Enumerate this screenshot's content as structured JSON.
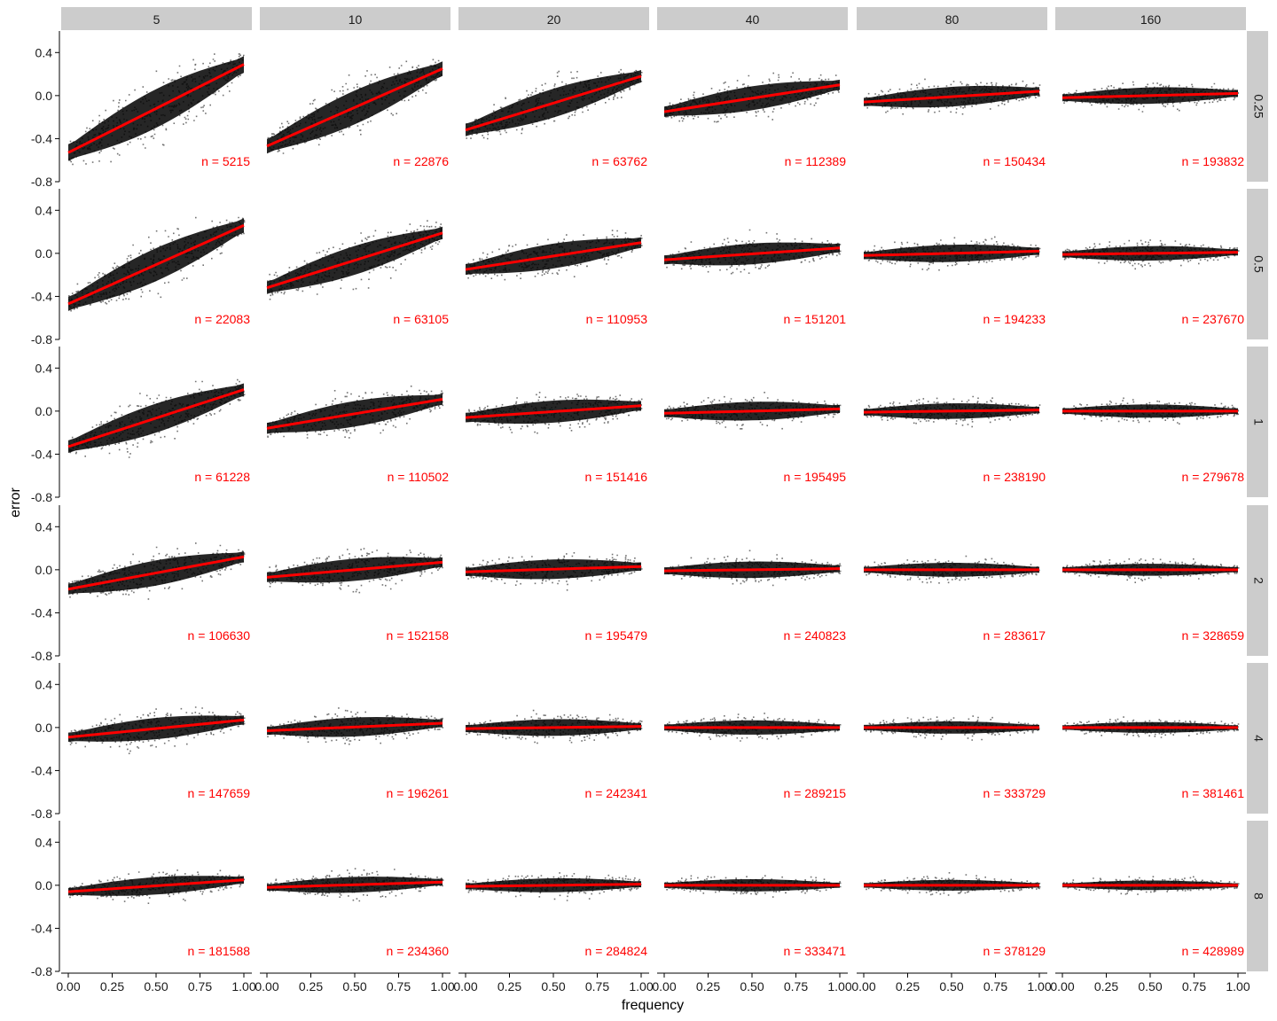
{
  "chart_data": {
    "type": "scatter",
    "layout": "facet-grid",
    "title": "",
    "xlabel": "frequency",
    "ylabel": "error",
    "xlim": [
      0,
      1
    ],
    "ylim": [
      -0.8,
      0.6
    ],
    "x_ticks": [
      0,
      0.25,
      0.5,
      0.75,
      1
    ],
    "x_tick_labels": [
      "0.00",
      "0.25",
      "0.50",
      "0.75",
      "1.00"
    ],
    "y_ticks": [
      -0.8,
      -0.4,
      0.0,
      0.4
    ],
    "y_tick_labels": [
      "-0.8",
      "-0.4",
      "0.0",
      "0.4"
    ],
    "grid": false,
    "legend": "none",
    "point_color": "#000000",
    "fit_color": "#ff0000",
    "strip_color": "#cccccc",
    "col_facets": [
      "5",
      "10",
      "20",
      "40",
      "80",
      "160"
    ],
    "row_facets": [
      "0.25",
      "0.5",
      "1",
      "2",
      "4",
      "8"
    ],
    "panels": [
      [
        {
          "n": 5215,
          "label": "n = 5215",
          "fit": [
            -0.53,
            0.29
          ]
        },
        {
          "n": 22876,
          "label": "n = 22876",
          "fit": [
            -0.47,
            0.25
          ]
        },
        {
          "n": 63762,
          "label": "n = 63762",
          "fit": [
            -0.32,
            0.18
          ]
        },
        {
          "n": 112389,
          "label": "n = 112389",
          "fit": [
            -0.15,
            0.1
          ]
        },
        {
          "n": 150434,
          "label": "n = 150434",
          "fit": [
            -0.06,
            0.04
          ]
        },
        {
          "n": 193832,
          "label": "n = 193832",
          "fit": [
            -0.02,
            0.02
          ]
        }
      ],
      [
        {
          "n": 22083,
          "label": "n = 22083",
          "fit": [
            -0.47,
            0.26
          ]
        },
        {
          "n": 63105,
          "label": "n = 63105",
          "fit": [
            -0.32,
            0.19
          ]
        },
        {
          "n": 110953,
          "label": "n = 110953",
          "fit": [
            -0.15,
            0.1
          ]
        },
        {
          "n": 151201,
          "label": "n = 151201",
          "fit": [
            -0.06,
            0.05
          ]
        },
        {
          "n": 194233,
          "label": "n = 194233",
          "fit": [
            -0.02,
            0.02
          ]
        },
        {
          "n": 237670,
          "label": "n = 237670",
          "fit": [
            -0.01,
            0.01
          ]
        }
      ],
      [
        {
          "n": 61228,
          "label": "n = 61228",
          "fit": [
            -0.33,
            0.2
          ]
        },
        {
          "n": 110502,
          "label": "n = 110502",
          "fit": [
            -0.16,
            0.11
          ]
        },
        {
          "n": 151416,
          "label": "n = 151416",
          "fit": [
            -0.06,
            0.05
          ]
        },
        {
          "n": 195495,
          "label": "n = 195495",
          "fit": [
            -0.02,
            0.02
          ]
        },
        {
          "n": 238190,
          "label": "n = 238190",
          "fit": [
            -0.01,
            0.01
          ]
        },
        {
          "n": 279678,
          "label": "n = 279678",
          "fit": [
            0.0,
            0.0
          ]
        }
      ],
      [
        {
          "n": 106630,
          "label": "n = 106630",
          "fit": [
            -0.18,
            0.12
          ]
        },
        {
          "n": 152158,
          "label": "n = 152158",
          "fit": [
            -0.07,
            0.07
          ]
        },
        {
          "n": 195479,
          "label": "n = 195479",
          "fit": [
            -0.02,
            0.03
          ]
        },
        {
          "n": 240823,
          "label": "n = 240823",
          "fit": [
            -0.01,
            0.01
          ]
        },
        {
          "n": 283617,
          "label": "n = 283617",
          "fit": [
            0.0,
            0.0
          ]
        },
        {
          "n": 328659,
          "label": "n = 328659",
          "fit": [
            0.0,
            0.0
          ]
        }
      ],
      [
        {
          "n": 147659,
          "label": "n = 147659",
          "fit": [
            -0.09,
            0.07
          ]
        },
        {
          "n": 196261,
          "label": "n = 196261",
          "fit": [
            -0.03,
            0.04
          ]
        },
        {
          "n": 242341,
          "label": "n = 242341",
          "fit": [
            -0.01,
            0.01
          ]
        },
        {
          "n": 289215,
          "label": "n = 289215",
          "fit": [
            0.0,
            0.0
          ]
        },
        {
          "n": 333729,
          "label": "n = 333729",
          "fit": [
            0.0,
            0.0
          ]
        },
        {
          "n": 381461,
          "label": "n = 381461",
          "fit": [
            0.0,
            0.0
          ]
        }
      ],
      [
        {
          "n": 181588,
          "label": "n = 181588",
          "fit": [
            -0.06,
            0.05
          ]
        },
        {
          "n": 234360,
          "label": "n = 234360",
          "fit": [
            -0.02,
            0.03
          ]
        },
        {
          "n": 284824,
          "label": "n = 284824",
          "fit": [
            -0.01,
            0.01
          ]
        },
        {
          "n": 333471,
          "label": "n = 333471",
          "fit": [
            0.0,
            0.0
          ]
        },
        {
          "n": 378129,
          "label": "n = 378129",
          "fit": [
            0.0,
            0.0
          ]
        },
        {
          "n": 428989,
          "label": "n = 428989",
          "fit": [
            0.0,
            0.0
          ]
        }
      ]
    ]
  }
}
